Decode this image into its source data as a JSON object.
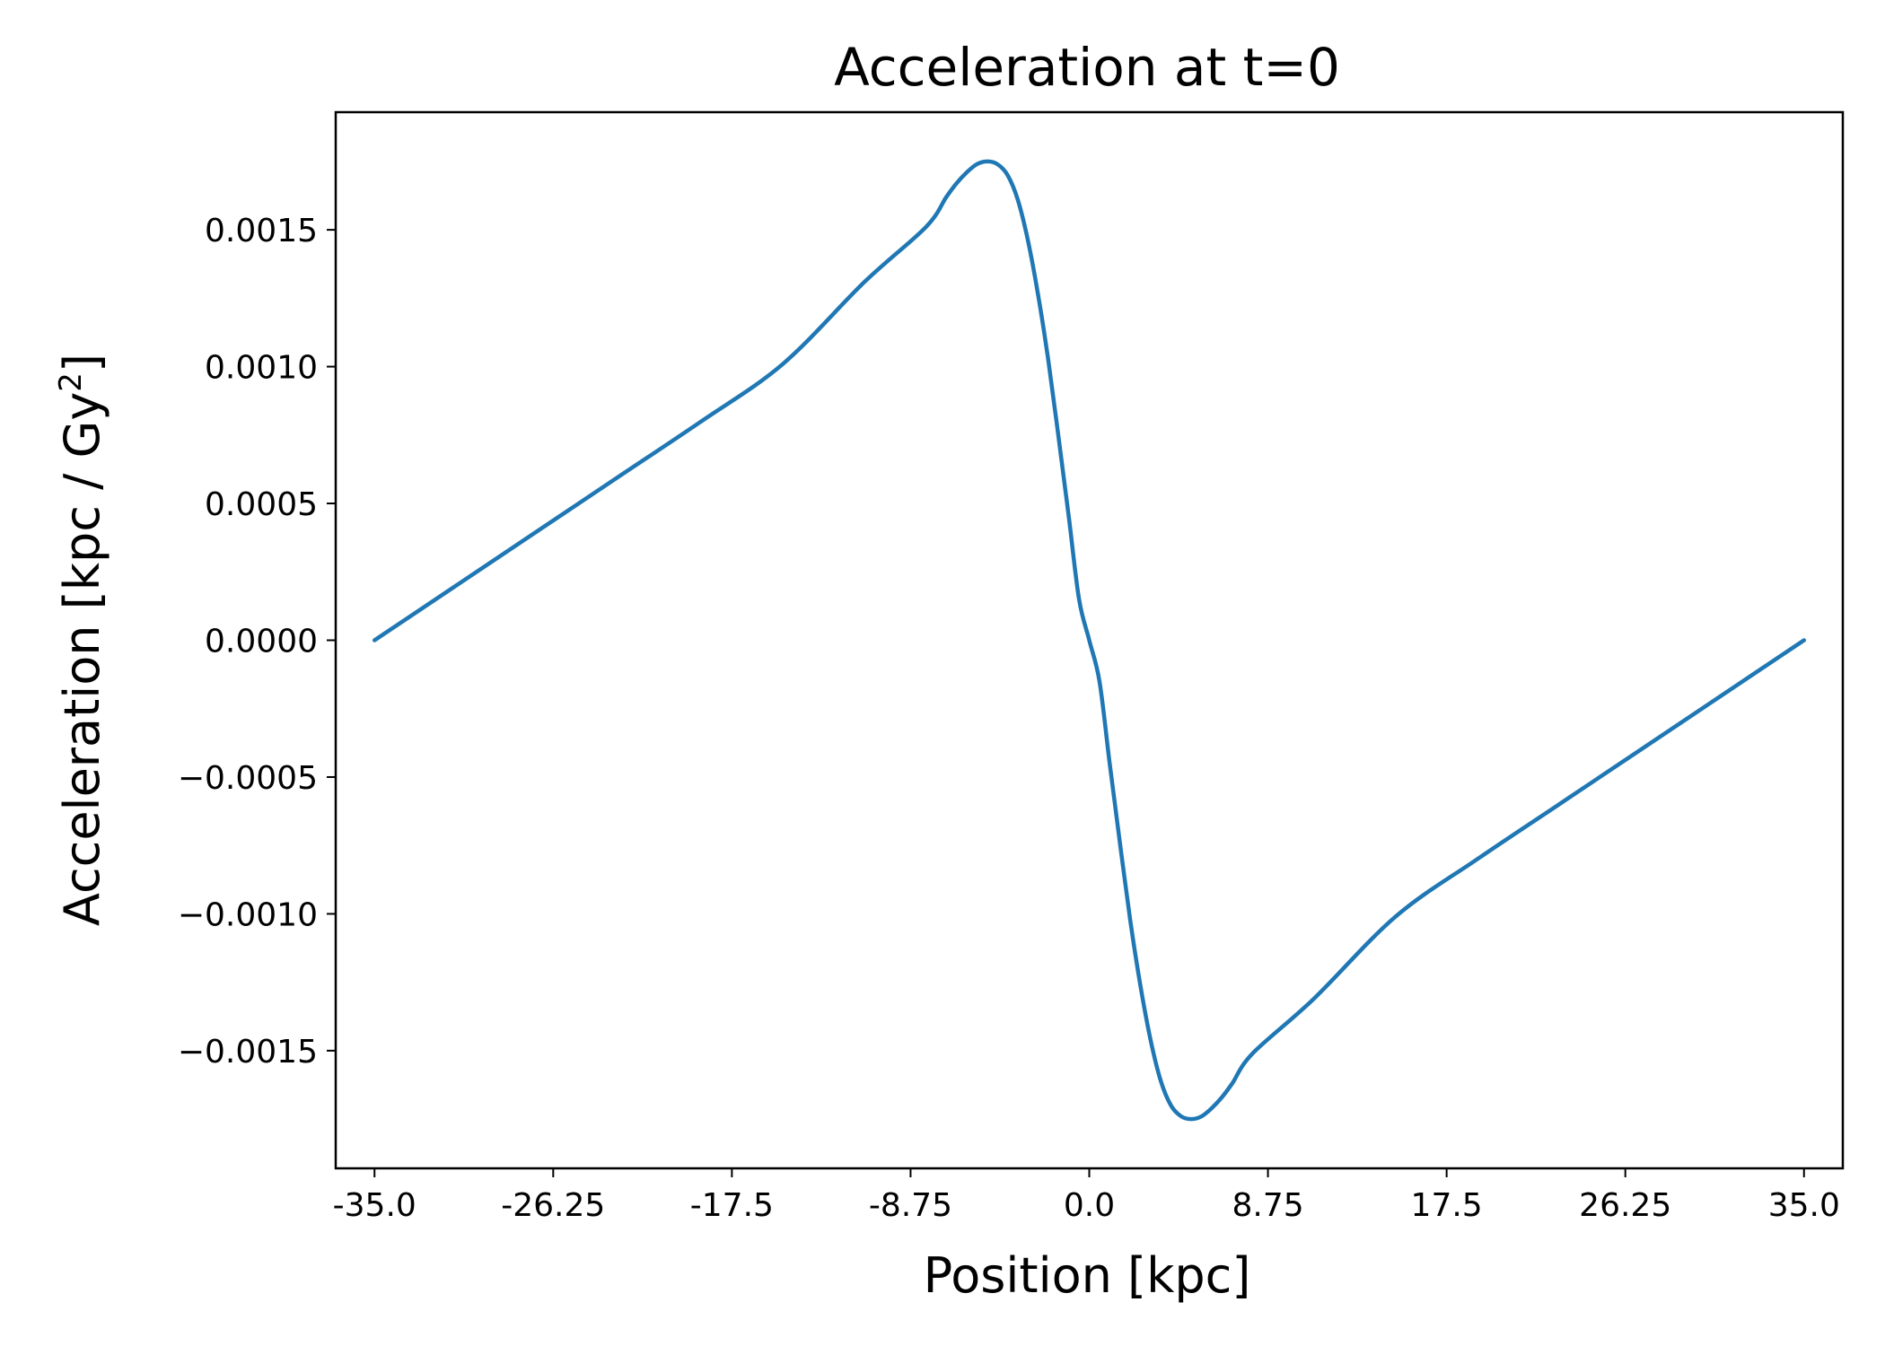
{
  "chart_data": {
    "type": "line",
    "title": "Acceleration at t=0",
    "xlabel": "Position [kpc]",
    "ylabel": "Acceleration [kpc / Gy",
    "ylabel_superscript": "2",
    "ylabel_suffix": "]",
    "xlim": [
      -36.9,
      36.9
    ],
    "ylim": [
      -0.00193,
      0.00193
    ],
    "x_ticks": [
      -35.0,
      -26.25,
      -17.5,
      -8.75,
      0.0,
      8.75,
      17.5,
      26.25,
      35.0
    ],
    "x_tick_labels": [
      "-35.0",
      "-26.25",
      "-17.5",
      "-8.75",
      "0.0",
      "8.75",
      "17.5",
      "26.25",
      "35.0"
    ],
    "y_ticks": [
      0.0015,
      0.001,
      0.0005,
      0.0,
      -0.0005,
      -0.001,
      -0.0015
    ],
    "y_tick_labels": [
      "0.0015",
      "0.0010",
      "0.0005",
      "0.0000",
      "−0.0005",
      "−0.0010",
      "−0.0015"
    ],
    "grid": false,
    "legend": "none",
    "series": [
      {
        "color": "#1f77b4",
        "x": [
          -35,
          -31,
          -27,
          -23,
          -19,
          -15,
          -11,
          -8,
          -7,
          -6.5,
          -6,
          -5.5,
          -5,
          -4.5,
          -4,
          -3.5,
          -3,
          -2.5,
          -2,
          -1.5,
          -1,
          -0.5,
          0,
          0.5,
          1,
          1.5,
          2,
          2.5,
          3,
          3.5,
          4,
          4.5,
          5,
          5.5,
          6,
          6.5,
          7,
          8,
          11,
          15,
          19,
          23,
          27,
          31,
          35
        ],
        "y": [
          0,
          0.0002,
          0.0004,
          0.0006,
          0.0008,
          0.00101,
          0.00131,
          0.00151,
          0.00162,
          0.00167,
          0.00171,
          0.00174,
          0.00175,
          0.00174,
          0.0017,
          0.00161,
          0.00146,
          0.00126,
          0.00102,
          0.00074,
          0.00045,
          0.00015,
          0,
          -0.00015,
          -0.00045,
          -0.00074,
          -0.00102,
          -0.00126,
          -0.00146,
          -0.00161,
          -0.0017,
          -0.00174,
          -0.00175,
          -0.00174,
          -0.00171,
          -0.00167,
          -0.00162,
          -0.00151,
          -0.00131,
          -0.00101,
          -0.0008,
          -0.0006,
          -0.0004,
          -0.0002,
          0
        ]
      }
    ]
  }
}
